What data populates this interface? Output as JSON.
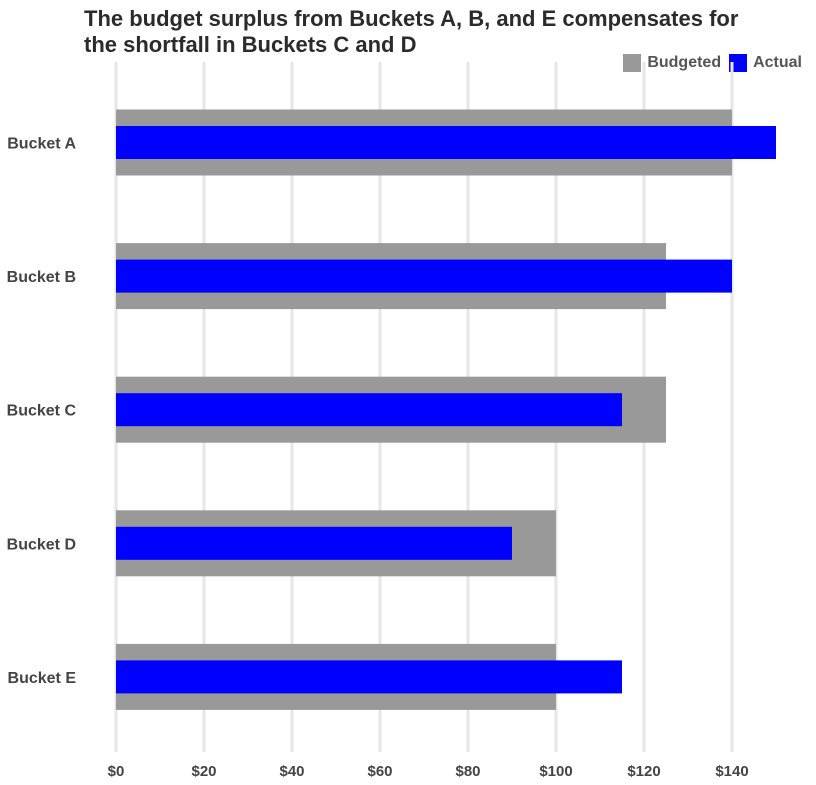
{
  "chart_data": {
    "type": "bar",
    "orientation": "horizontal",
    "title_lines": [
      "The budget surplus from Buckets A, B, and E compensates for",
      "the shortfall in Buckets C and D"
    ],
    "categories": [
      "Bucket A",
      "Bucket B",
      "Bucket C",
      "Bucket D",
      "Bucket E"
    ],
    "series": [
      {
        "name": "Budgeted",
        "values": [
          140,
          125,
          125,
          100,
          100
        ],
        "color": "#999999"
      },
      {
        "name": "Actual",
        "values": [
          150,
          140,
          115,
          90,
          115
        ],
        "color": "#0000ff"
      }
    ],
    "x_ticks": [
      0,
      20,
      40,
      60,
      80,
      100,
      120,
      140
    ],
    "x_tick_labels": [
      "$0",
      "$20",
      "$40",
      "$60",
      "$80",
      "$100",
      "$120",
      "$140"
    ],
    "xlim": [
      0,
      150
    ],
    "grid": "vertical",
    "legend_position": "top-right"
  }
}
